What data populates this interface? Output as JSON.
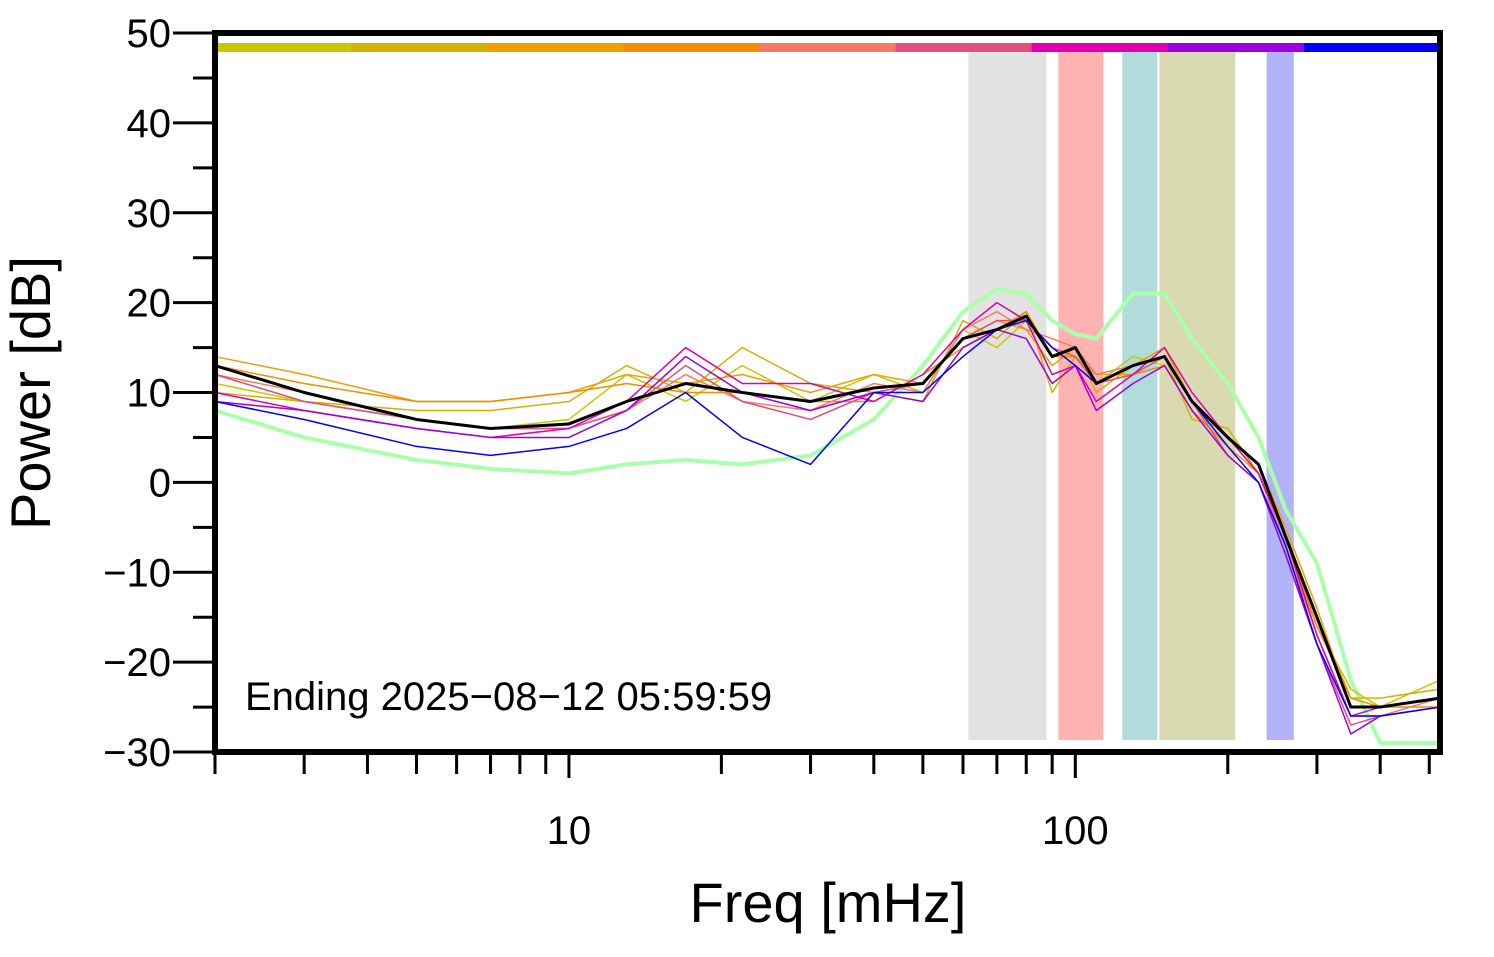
{
  "chart_data": {
    "type": "line",
    "xlabel": "Freq [mHz]",
    "ylabel": "Power [dB]",
    "annotation": "Ending 2025−08−12 05:59:59",
    "xscale": "log",
    "xlim": [
      2,
      525
    ],
    "ylim": [
      -30,
      50
    ],
    "xticks": [
      10,
      100
    ],
    "xminorticks": [
      2,
      3,
      4,
      5,
      6,
      7,
      8,
      9,
      20,
      30,
      40,
      50,
      60,
      70,
      80,
      90,
      200,
      300,
      400,
      500
    ],
    "yticks": [
      {
        "value": -30,
        "label": "−30"
      },
      {
        "value": -20,
        "label": "−20"
      },
      {
        "value": -10,
        "label": "−10"
      },
      0,
      10,
      20,
      30,
      40,
      50
    ],
    "yminorticks": [
      -25,
      -15,
      -5,
      5,
      15,
      25,
      35,
      45
    ],
    "bands": [
      {
        "from": 61.5,
        "to": 87.7,
        "color": "#e2e2e2"
      },
      {
        "from": 92.6,
        "to": 113.6,
        "color": "#ffb2b2"
      },
      {
        "from": 123.8,
        "to": 145.2,
        "color": "#b2dcdc"
      },
      {
        "from": 146.6,
        "to": 207,
        "color": "#d9d9b2"
      },
      {
        "from": 238.6,
        "to": 270,
        "color": "#b2b2f8"
      }
    ],
    "x": [
      2,
      3,
      5,
      7,
      10,
      13,
      17,
      22,
      30,
      40,
      50,
      60,
      70,
      80,
      90,
      100,
      110,
      130,
      150,
      170,
      200,
      230,
      260,
      300,
      350,
      400,
      525
    ],
    "series": [
      {
        "color": "#aaffaa",
        "width": 4,
        "values": [
          8,
          5,
          2.5,
          1.5,
          1,
          2,
          2.5,
          2,
          3,
          7,
          13,
          19,
          21.5,
          21,
          18,
          16.5,
          16,
          21,
          21,
          16,
          11,
          5,
          -3,
          -9,
          -22,
          -29,
          -29
        ]
      },
      {
        "color": "#c8c800",
        "width": 1.5,
        "values": [
          11,
          9,
          7,
          6,
          7,
          12,
          9,
          13,
          9,
          12,
          10,
          17,
          15,
          18,
          12,
          13,
          11,
          14,
          13,
          8,
          4,
          0,
          -7,
          -16,
          -23,
          -25,
          -22
        ]
      },
      {
        "color": "#d4b000",
        "width": 1.5,
        "values": [
          10,
          9,
          8,
          8,
          9,
          13,
          10,
          15,
          11,
          10,
          9,
          18,
          16,
          19,
          10,
          14,
          12,
          12,
          14,
          7,
          6,
          1,
          -6,
          -15,
          -24,
          -24,
          -23
        ]
      },
      {
        "color": "#f0a000",
        "width": 1.5,
        "values": [
          14,
          12,
          9,
          9,
          10,
          12,
          11,
          12,
          10,
          12,
          11,
          16,
          18,
          17,
          13,
          15,
          10,
          13,
          15,
          9,
          5,
          2,
          -5,
          -14,
          -25,
          -25,
          -24
        ]
      },
      {
        "color": "#f58c00",
        "width": 1.5,
        "values": [
          13,
          11,
          9,
          9,
          10,
          11,
          10,
          10,
          9,
          9,
          12,
          15,
          17,
          19,
          14,
          14,
          11,
          12,
          13,
          8,
          4,
          1,
          -6,
          -16,
          -24,
          -25,
          -25
        ]
      },
      {
        "color": "#f87868",
        "width": 1.5,
        "values": [
          12,
          10,
          7,
          6,
          6,
          8,
          12,
          9,
          8,
          11,
          10,
          17,
          19,
          17,
          16,
          15,
          12,
          13,
          14,
          9,
          5,
          1,
          -7,
          -17,
          -26,
          -26,
          -24
        ]
      },
      {
        "color": "#e0507a",
        "width": 1.5,
        "values": [
          12,
          9,
          7,
          6,
          6,
          8,
          13,
          9,
          7,
          10,
          11,
          16,
          18,
          18,
          15,
          14,
          11,
          12,
          14,
          9,
          3,
          0,
          -8,
          -18,
          -27,
          -26,
          -25
        ]
      },
      {
        "color": "#e000b0",
        "width": 1.5,
        "values": [
          10,
          8,
          6,
          5,
          6,
          9,
          15,
          11,
          11,
          9,
          12,
          17,
          20,
          18,
          12,
          13,
          9,
          12,
          15,
          10,
          5,
          1,
          -6,
          -17,
          -26,
          -25,
          -24
        ]
      },
      {
        "color": "#a000e0",
        "width": 1.5,
        "values": [
          9,
          8,
          6,
          5,
          5,
          8,
          14,
          10,
          8,
          10,
          9,
          15,
          17,
          16,
          11,
          13,
          8,
          11,
          13,
          8,
          3,
          0,
          -8,
          -18,
          -28,
          -26,
          -25
        ]
      },
      {
        "color": "#0000ff",
        "width": 1.5,
        "values": [
          9,
          7,
          4,
          3,
          4,
          6,
          10,
          5,
          2,
          10,
          10,
          14,
          17,
          18,
          15,
          13,
          11,
          13,
          14,
          9,
          4,
          0,
          -7,
          -18,
          -26,
          -26,
          -25
        ]
      },
      {
        "color": "#000000",
        "width": 3,
        "values": [
          13,
          10,
          7,
          6,
          6.5,
          9,
          11,
          10,
          9,
          10.5,
          11,
          16,
          17,
          18.5,
          14,
          15,
          11,
          13,
          14,
          9,
          5,
          2,
          -6,
          -15,
          -25,
          -25,
          -24
        ]
      }
    ]
  }
}
